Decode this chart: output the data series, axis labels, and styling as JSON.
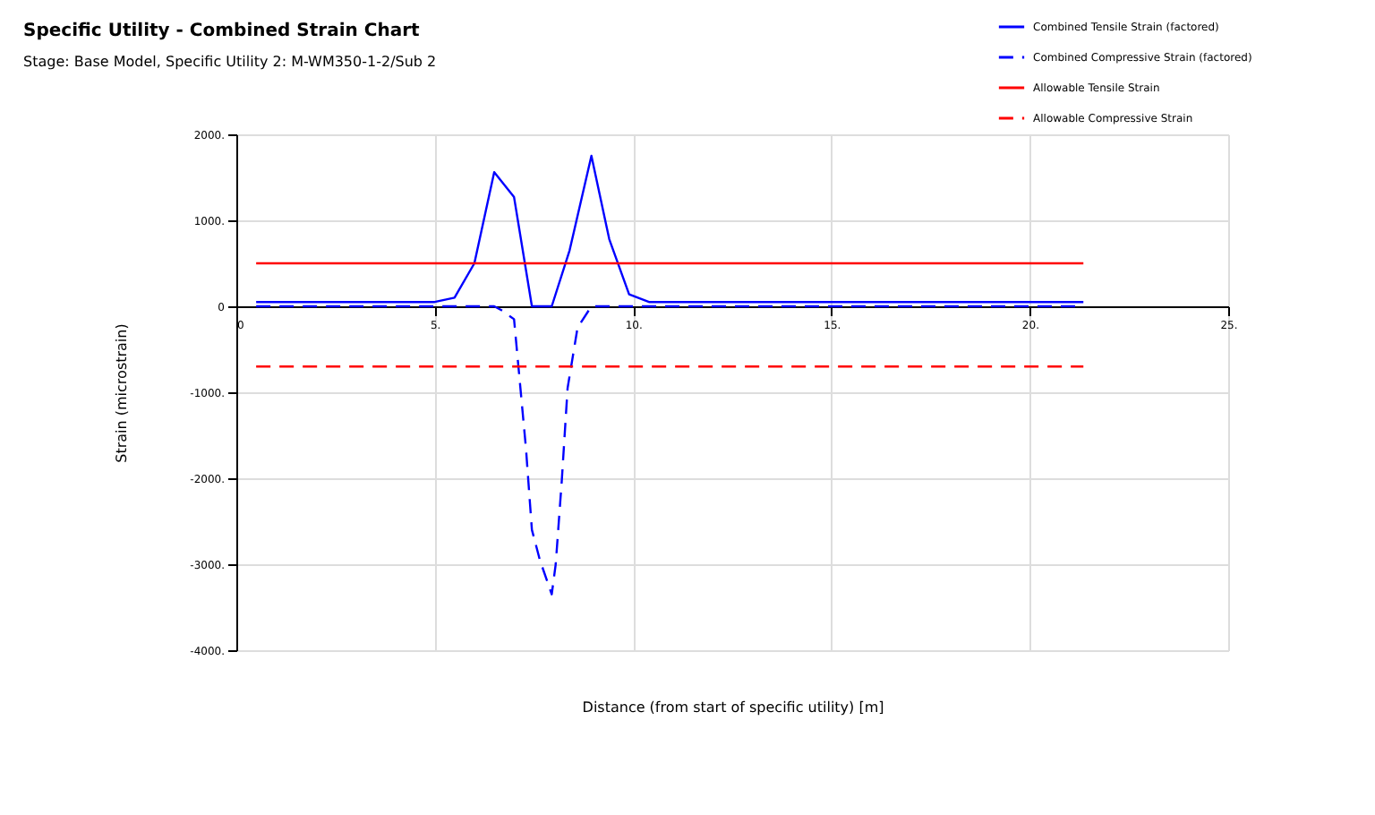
{
  "chart_data": {
    "type": "line",
    "title": "Specific Utility - Combined Strain Chart",
    "subtitle": "Stage: Base Model, Specific Utility 2: M-WM350-1-2/Sub 2",
    "xlabel": "Distance (from start of specific utility) [m]",
    "ylabel": "Strain (microstrain)",
    "xlim": [
      0,
      25
    ],
    "xticks": [
      0,
      {
        "value": 5,
        "label": "5."
      },
      {
        "value": 10,
        "label": "10."
      },
      {
        "value": 15,
        "label": "15."
      },
      {
        "value": 20,
        "label": "20."
      },
      {
        "value": 25,
        "label": "25."
      }
    ],
    "ylim": [
      -4000,
      2000
    ],
    "yticks": [
      {
        "value": -4000,
        "label": "-4000."
      },
      {
        "value": -3000,
        "label": "-3000."
      },
      {
        "value": -2000,
        "label": "-2000."
      },
      {
        "value": -1000,
        "label": "-1000."
      },
      0,
      {
        "value": 1000,
        "label": "1000."
      },
      {
        "value": 2000,
        "label": "2000."
      }
    ],
    "grid": true,
    "legend": "top right",
    "marker": "none",
    "series": [
      {
        "name": "Combined Tensile Strain (factored)",
        "color": "#0000ff",
        "line_style": "solid",
        "x": [
          0.5,
          5.0,
          5.5,
          6.0,
          6.5,
          7.0,
          7.45,
          7.95,
          8.4,
          8.95,
          9.4,
          9.9,
          10.4,
          21.35
        ],
        "values": [
          50,
          50,
          100,
          500,
          1560,
          1270,
          0,
          0,
          650,
          1750,
          780,
          140,
          50,
          50
        ]
      },
      {
        "name": "Combined Compressive Strain (factored)",
        "color": "#0000ff",
        "line_style": "dashed",
        "x": [
          0.5,
          6.5,
          6.7,
          7.0,
          7.3,
          7.45,
          7.65,
          7.95,
          8.05,
          8.2,
          8.35,
          8.6,
          8.95,
          21.35
        ],
        "values": [
          0,
          0,
          -50,
          -150,
          -1650,
          -2600,
          -2950,
          -3350,
          -3000,
          -2050,
          -950,
          -250,
          0,
          0
        ]
      },
      {
        "name": "Allowable Tensile Strain",
        "color": "#ff0000",
        "line_style": "solid",
        "x": [
          0.5,
          21.35
        ],
        "values": [
          500,
          500
        ]
      },
      {
        "name": "Allowable Compressive Strain",
        "color": "#ff0000",
        "line_style": "dashed",
        "x": [
          0.5,
          21.35
        ],
        "values": [
          -700,
          -700
        ]
      }
    ]
  }
}
